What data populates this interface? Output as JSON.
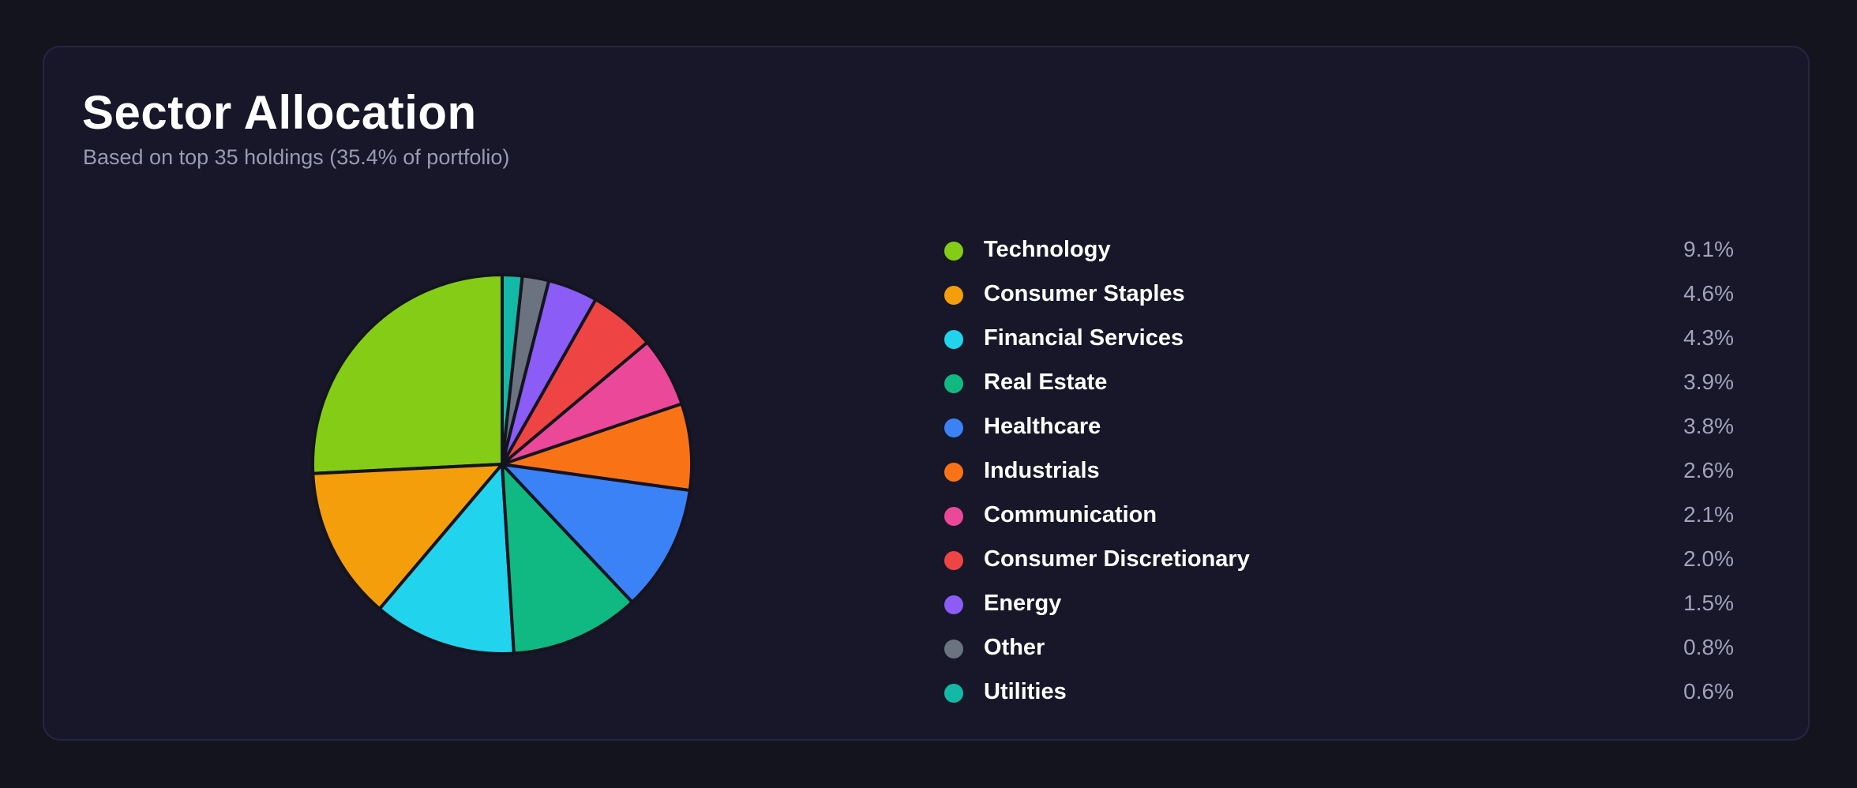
{
  "card": {
    "title": "Sector Allocation",
    "subtitle": "Based on top 35 holdings (35.4% of portfolio)"
  },
  "chart_data": {
    "type": "pie",
    "title": "Sector Allocation",
    "subtitle": "Based on top 35 holdings (35.4% of portfolio)",
    "legend_position": "right",
    "categories": [
      "Technology",
      "Consumer Staples",
      "Financial Services",
      "Real Estate",
      "Healthcare",
      "Industrials",
      "Communication",
      "Consumer Discretionary",
      "Energy",
      "Other",
      "Utilities"
    ],
    "values": [
      9.1,
      4.6,
      4.3,
      3.9,
      3.8,
      2.6,
      2.1,
      2.0,
      1.5,
      0.8,
      0.6
    ],
    "labels": [
      "9.1%",
      "4.6%",
      "4.3%",
      "3.9%",
      "3.8%",
      "2.6%",
      "2.1%",
      "2.0%",
      "1.5%",
      "0.8%",
      "0.6%"
    ],
    "colors": [
      "#84cc16",
      "#f59e0b",
      "#22d3ee",
      "#10b981",
      "#3b82f6",
      "#f97316",
      "#ec4899",
      "#ef4444",
      "#8b5cf6",
      "#6b7280",
      "#14b8a6"
    ],
    "direction": "counterclockwise",
    "start_angle": "top"
  }
}
